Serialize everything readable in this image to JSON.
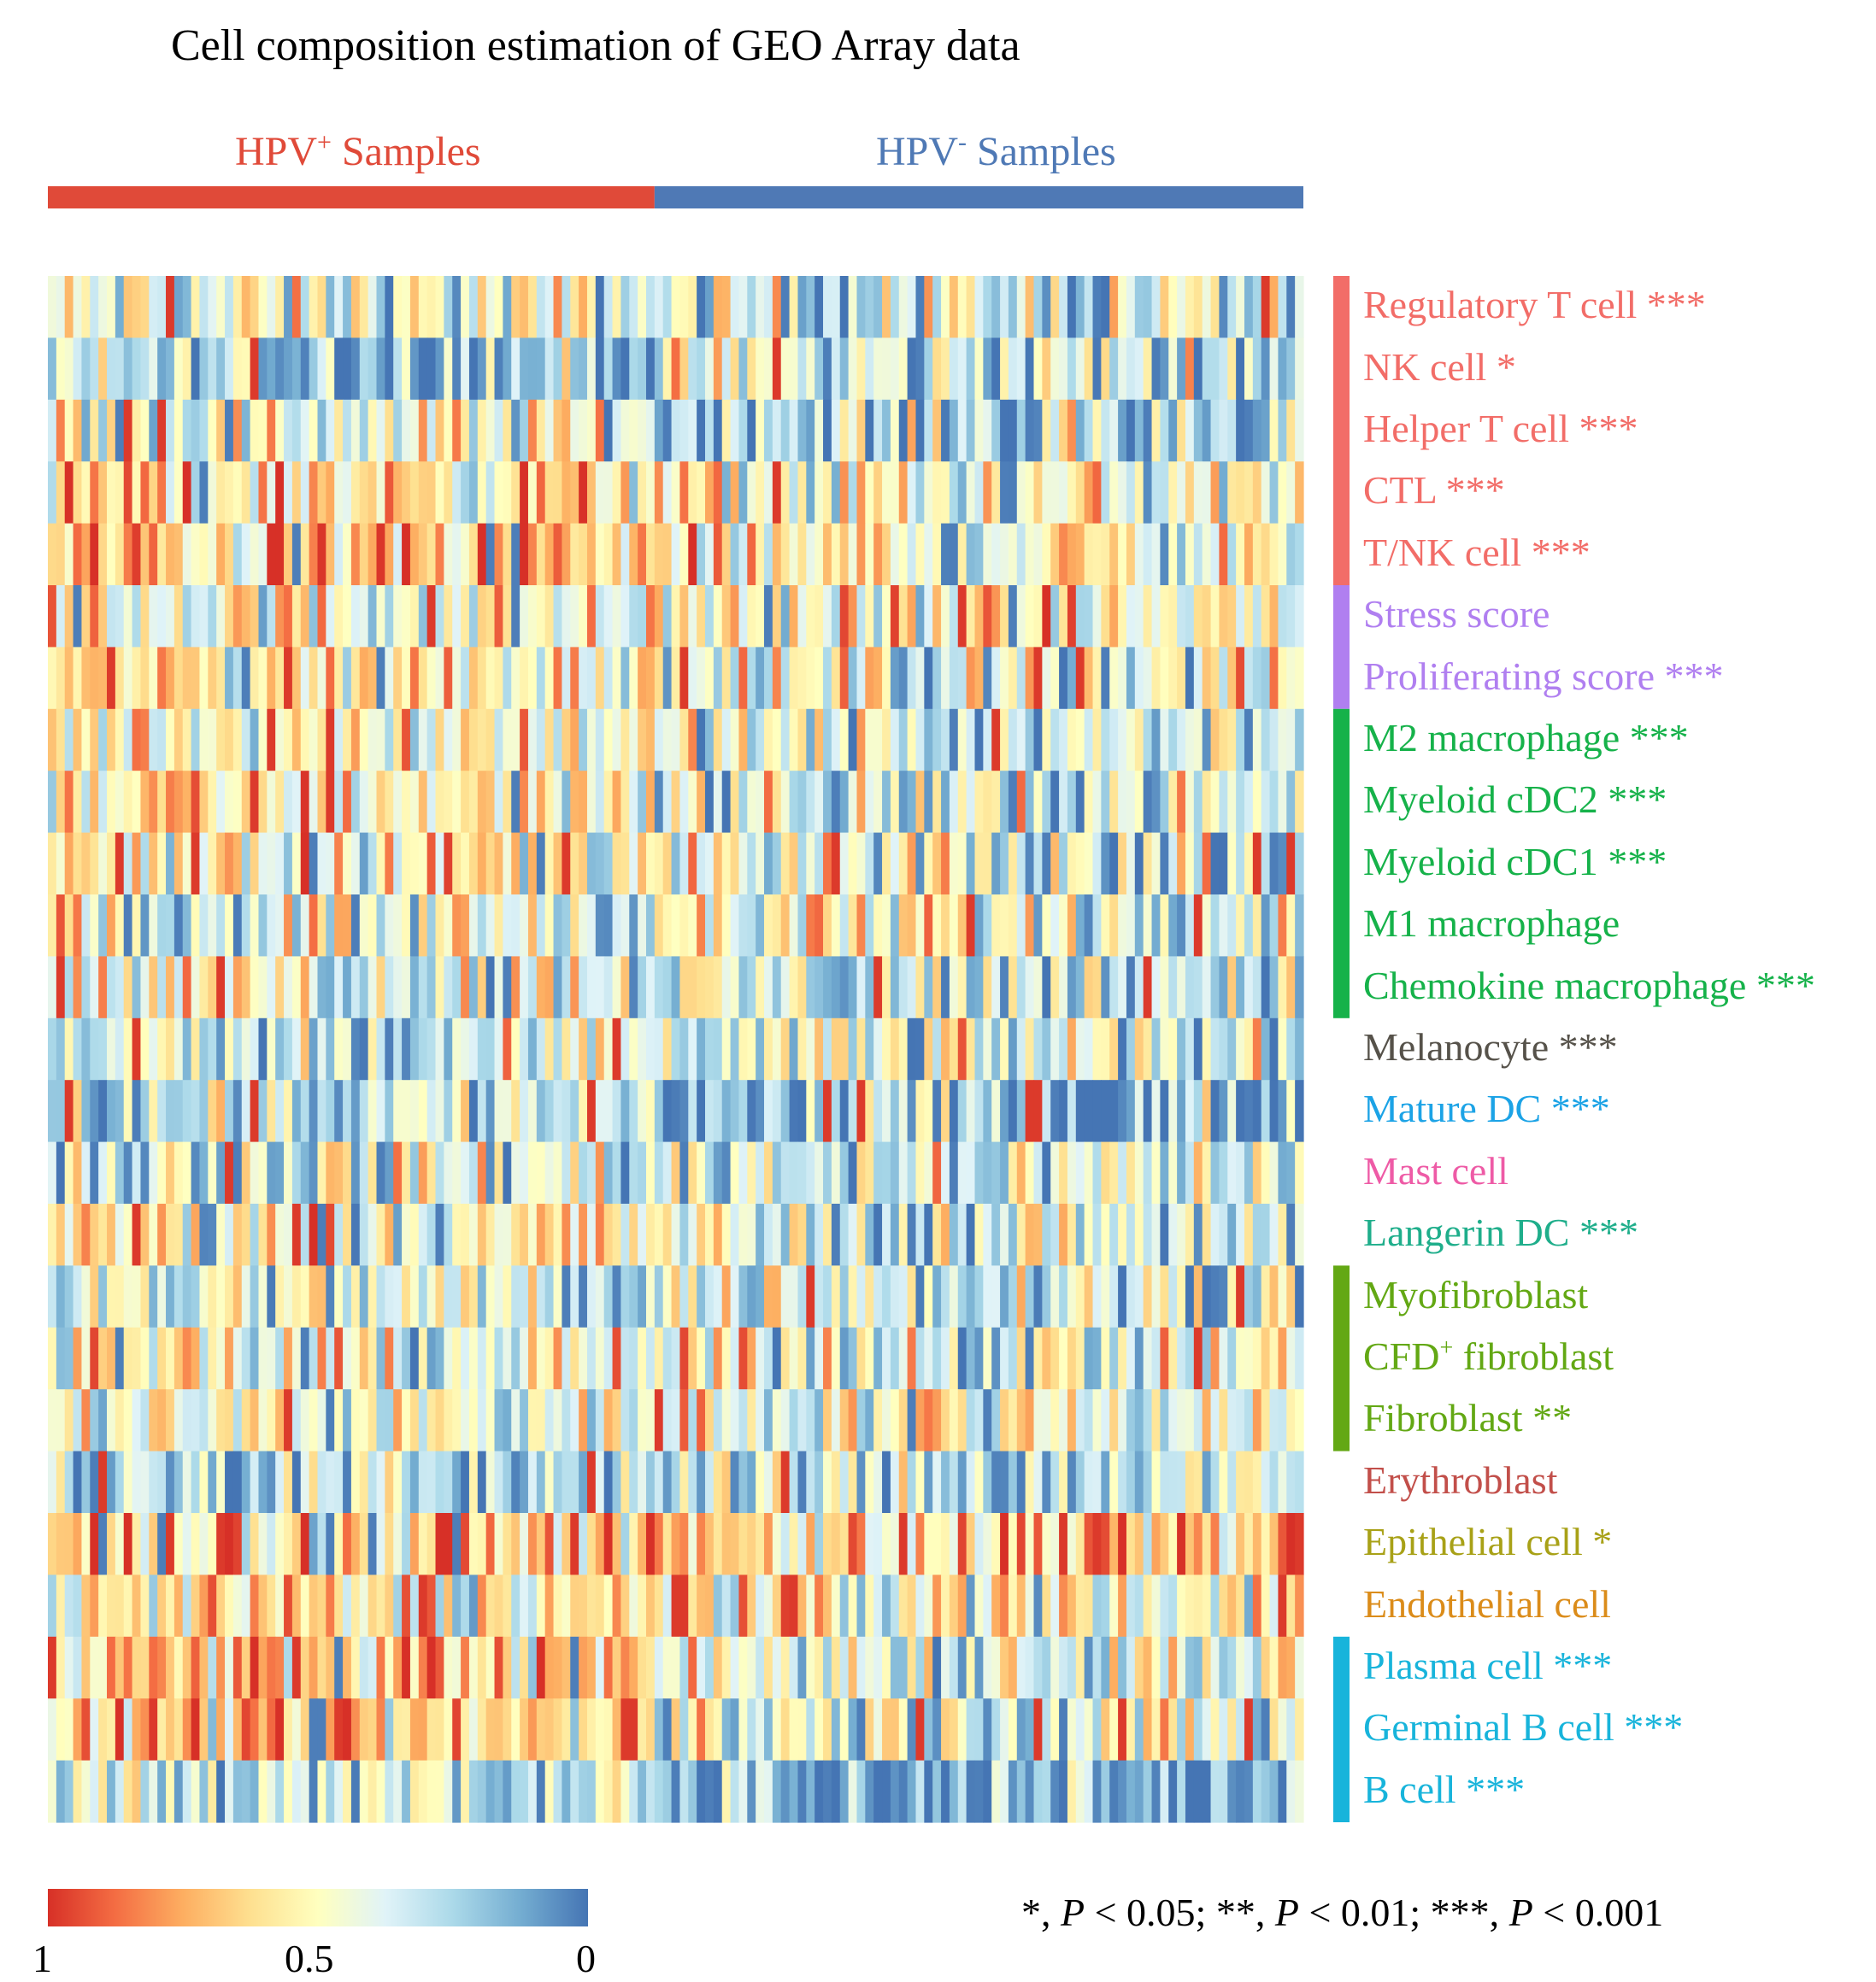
{
  "chart_data": {
    "type": "heatmap",
    "title": "Cell composition estimation of GEO Array data",
    "groups": [
      {
        "name": "HPV",
        "sup": "+",
        "suffix": " Samples",
        "color": "#E04A39",
        "n_samples": 72
      },
      {
        "name": "HPV",
        "sup": "-",
        "suffix": " Samples",
        "color": "#4F79B5",
        "n_samples": 77
      }
    ],
    "rows": [
      {
        "label": "Regulatory T cell",
        "sig": "***",
        "color": "#F26D68",
        "category": "T/NK"
      },
      {
        "label": "NK cell",
        "sig": "*",
        "color": "#F26D68",
        "category": "T/NK"
      },
      {
        "label": "Helper T cell",
        "sig": "***",
        "color": "#F26D68",
        "category": "T/NK"
      },
      {
        "label": "CTL",
        "sig": "***",
        "color": "#F26D68",
        "category": "T/NK"
      },
      {
        "label": "T/NK cell",
        "sig": "***",
        "color": "#F26D68",
        "category": "T/NK"
      },
      {
        "label": "Stress score",
        "sig": "",
        "color": "#B07FF0",
        "category": "Score"
      },
      {
        "label": "Proliferating score",
        "sig": "***",
        "color": "#B07FF0",
        "category": "Score"
      },
      {
        "label": "M2 macrophage",
        "sig": "***",
        "color": "#16B24A",
        "category": "Myeloid"
      },
      {
        "label": "Myeloid cDC2",
        "sig": "***",
        "color": "#16B24A",
        "category": "Myeloid"
      },
      {
        "label": "Myeloid cDC1",
        "sig": "***",
        "color": "#16B24A",
        "category": "Myeloid"
      },
      {
        "label": "M1 macrophage",
        "sig": "",
        "color": "#16B24A",
        "category": "Myeloid"
      },
      {
        "label": "Chemokine macrophage",
        "sig": "***",
        "color": "#16B24A",
        "category": "Myeloid"
      },
      {
        "label": "Melanocyte",
        "sig": "***",
        "color": "#56524A",
        "category": "Melanocyte"
      },
      {
        "label": "Mature DC",
        "sig": "***",
        "color": "#1CA3E6",
        "category": "Mature DC"
      },
      {
        "label": "Mast cell",
        "sig": "",
        "color": "#EE5BA6",
        "category": "Mast"
      },
      {
        "label": "Langerin DC",
        "sig": "***",
        "color": "#1FAE8B",
        "category": "Langerin"
      },
      {
        "label": "Myofibroblast",
        "sig": "",
        "color": "#63A814",
        "category": "Fibroblast"
      },
      {
        "label": "CFD",
        "label_sup": "+",
        "label_suffix": " fibroblast",
        "sig": "",
        "color": "#63A814",
        "category": "Fibroblast"
      },
      {
        "label": "Fibroblast",
        "sig": "**",
        "color": "#63A814",
        "category": "Fibroblast"
      },
      {
        "label": "Erythroblast",
        "sig": "",
        "color": "#C24F4A",
        "category": "Erythroblast"
      },
      {
        "label": "Epithelial cell",
        "sig": "*",
        "color": "#A8A117",
        "category": "Epithelial"
      },
      {
        "label": "Endothelial cell",
        "sig": "",
        "color": "#DB8C1A",
        "category": "Endothelial"
      },
      {
        "label": "Plasma cell",
        "sig": "***",
        "color": "#18B4DB",
        "category": "B"
      },
      {
        "label": "Germinal B cell",
        "sig": "***",
        "color": "#18B4DB",
        "category": "B"
      },
      {
        "label": "B cell",
        "sig": "***",
        "color": "#18B4DB",
        "category": "B"
      }
    ],
    "row_group_bars": [
      {
        "category": "T/NK",
        "color": "#F26D68"
      },
      {
        "category": "Score",
        "color": "#B07FF0"
      },
      {
        "category": "Myeloid",
        "color": "#16B24A"
      },
      {
        "category": "Fibroblast",
        "color": "#63A814"
      },
      {
        "category": "B",
        "color": "#18B4DB"
      }
    ],
    "row_means": {
      "hpv_pos": [
        0.4,
        0.25,
        0.45,
        0.62,
        0.65,
        0.5,
        0.58,
        0.55,
        0.58,
        0.58,
        0.45,
        0.48,
        0.3,
        0.33,
        0.42,
        0.55,
        0.4,
        0.45,
        0.45,
        0.28,
        0.65,
        0.55,
        0.68,
        0.6,
        0.38
      ],
      "hpv_neg": [
        0.38,
        0.35,
        0.28,
        0.45,
        0.5,
        0.5,
        0.42,
        0.38,
        0.38,
        0.38,
        0.45,
        0.35,
        0.38,
        0.18,
        0.4,
        0.4,
        0.42,
        0.45,
        0.5,
        0.3,
        0.62,
        0.52,
        0.45,
        0.4,
        0.15
      ]
    },
    "colorbar": {
      "ticks": [
        "1",
        "0.5",
        "0"
      ],
      "colors": [
        "#D73027",
        "#F46D43",
        "#FDAE61",
        "#FEE090",
        "#FFFFBF",
        "#E0F3F8",
        "#ABD9E9",
        "#74ADD1",
        "#4575B4"
      ]
    },
    "footnote": {
      "a": "*, ",
      "p1": "P",
      "b": " < 0.05; **, ",
      "p2": "P",
      "c": " < 0.01; ***, ",
      "p3": "P",
      "d": " < 0.001"
    }
  }
}
